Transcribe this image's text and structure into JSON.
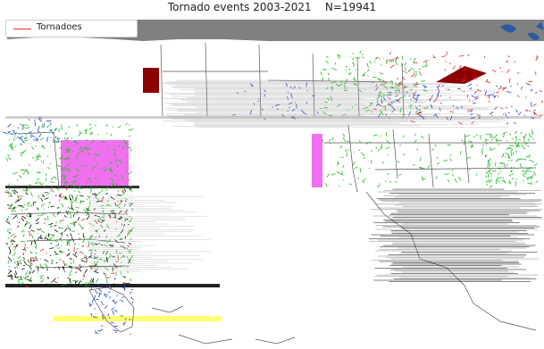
{
  "figure": {
    "title": "Tornado events 2003-2021    N=19941"
  },
  "legend": {
    "label": "Tornadoes",
    "color": "#e03030"
  },
  "colors": {
    "water": "#808080",
    "lake": "#2a5aa0",
    "land": "#ffffff",
    "border": "#555555",
    "magenta_artifact": "#f070f0",
    "darkred_artifact": "#8b0000",
    "yellow_artifact": "#ffff70",
    "track_green": "#22bb22",
    "track_red": "#dd2222",
    "track_blue": "#2244cc",
    "track_black": "#111111"
  }
}
